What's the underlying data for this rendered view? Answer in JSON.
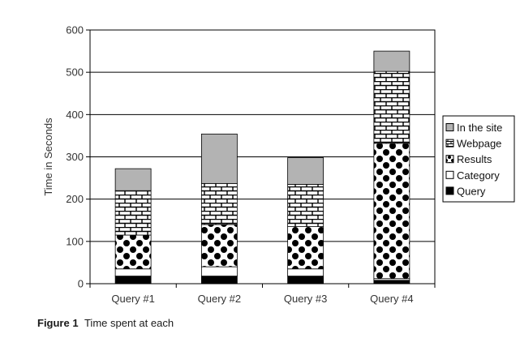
{
  "chart_data": {
    "type": "bar",
    "stacked": true,
    "categories": [
      "Query #1",
      "Query #2",
      "Query #3",
      "Query #4"
    ],
    "series": [
      {
        "name": "Query",
        "values": [
          18,
          18,
          18,
          8
        ],
        "pattern": "solid-black"
      },
      {
        "name": "Category",
        "values": [
          17,
          22,
          17,
          4
        ],
        "pattern": "white"
      },
      {
        "name": "Results",
        "values": [
          80,
          100,
          100,
          320
        ],
        "pattern": "dots"
      },
      {
        "name": "Webpage",
        "values": [
          105,
          97,
          100,
          170
        ],
        "pattern": "bricks"
      },
      {
        "name": "In the site",
        "values": [
          52,
          117,
          63,
          48
        ],
        "pattern": "gray"
      }
    ],
    "ylabel": "Time in Seconds",
    "xlabel": "",
    "ylim": [
      0,
      600
    ],
    "yticks": [
      0,
      100,
      200,
      300,
      400,
      500,
      600
    ],
    "grid": true,
    "legend": "right",
    "legend_order": [
      "In the site",
      "Webpage",
      "Results",
      "Category",
      "Query"
    ],
    "colors": {
      "gray": "#b3b3b3",
      "black": "#000000",
      "white": "#ffffff"
    }
  },
  "caption": {
    "label": "Figure 1",
    "text": "Time spent at each"
  }
}
